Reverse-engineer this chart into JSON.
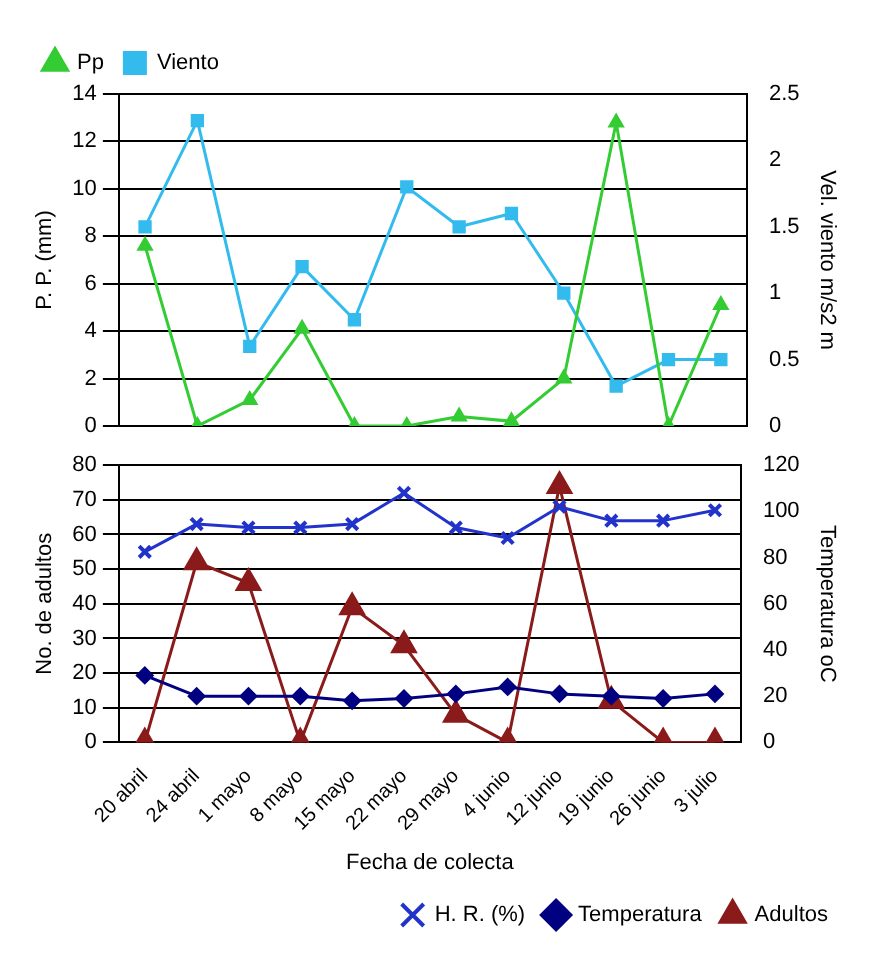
{
  "chart_data": [
    {
      "type": "line",
      "ylabel": "P. P. (mm)",
      "y2label": "Vel. viento m/s2 m",
      "categories": [
        null,
        null,
        null,
        null,
        null,
        null,
        null,
        null,
        null,
        null,
        null,
        null
      ],
      "series": [
        {
          "name": "Pp",
          "color": "#33cc33",
          "marker": "triangle",
          "values": [
            7.6,
            0,
            1.1,
            4.1,
            0,
            0,
            0.4,
            0.2,
            2,
            12.8,
            0,
            5.1
          ]
        },
        {
          "name": "Viento",
          "color": "#33bbee",
          "marker": "square",
          "axis": "y2",
          "values": [
            1.5,
            2.3,
            0.6,
            1.2,
            0.8,
            1.8,
            1.5,
            1.6,
            1.0,
            0.3,
            0.5,
            0.5
          ]
        }
      ],
      "ylim": [
        0,
        14
      ],
      "yticks": [
        0,
        2,
        4,
        6,
        8,
        10,
        12,
        14
      ],
      "y2lim": [
        0,
        2.5
      ],
      "y2ticks": [
        0,
        0.5,
        1,
        1.5,
        2,
        2.5
      ],
      "grid": "y",
      "legend": "top left",
      "tick_labels": "y"
    },
    {
      "type": "line",
      "xlabel": "Fecha de colecta",
      "ylabel": "No. de adultos",
      "y2label": "Temperatura oC",
      "categories": [
        "20 abril",
        "24 abril",
        "1 mayo",
        "8 mayo",
        "15 mayo",
        "22 mayo",
        "29 mayo",
        "4 junio",
        "12 junio",
        "19 junio",
        "26 junio",
        "3 julio"
      ],
      "series": [
        {
          "name": "H. R. (%)",
          "color": "#2233cc",
          "marker": "cross",
          "values": [
            55,
            63,
            62,
            62,
            63,
            72,
            62,
            59,
            68,
            64,
            64,
            67
          ]
        },
        {
          "name": "Temperatura",
          "color": "#000080",
          "marker": "diamond",
          "axis": "y2",
          "values": [
            29,
            20,
            20,
            20,
            18,
            19,
            21,
            24,
            21,
            20,
            19,
            21
          ]
        },
        {
          "name": "Adultos",
          "color": "#8b1a1a",
          "marker": "triangle",
          "values": [
            0,
            52,
            46,
            0,
            39,
            28,
            8,
            0,
            74,
            12,
            0,
            0
          ]
        }
      ],
      "ylim": [
        0,
        80
      ],
      "yticks": [
        0,
        10,
        20,
        30,
        40,
        50,
        60,
        70,
        80
      ],
      "y2lim": [
        0,
        120
      ],
      "y2ticks": [
        0,
        20,
        40,
        60,
        80,
        100,
        120
      ],
      "grid": "y",
      "legend": "bottom right"
    }
  ]
}
